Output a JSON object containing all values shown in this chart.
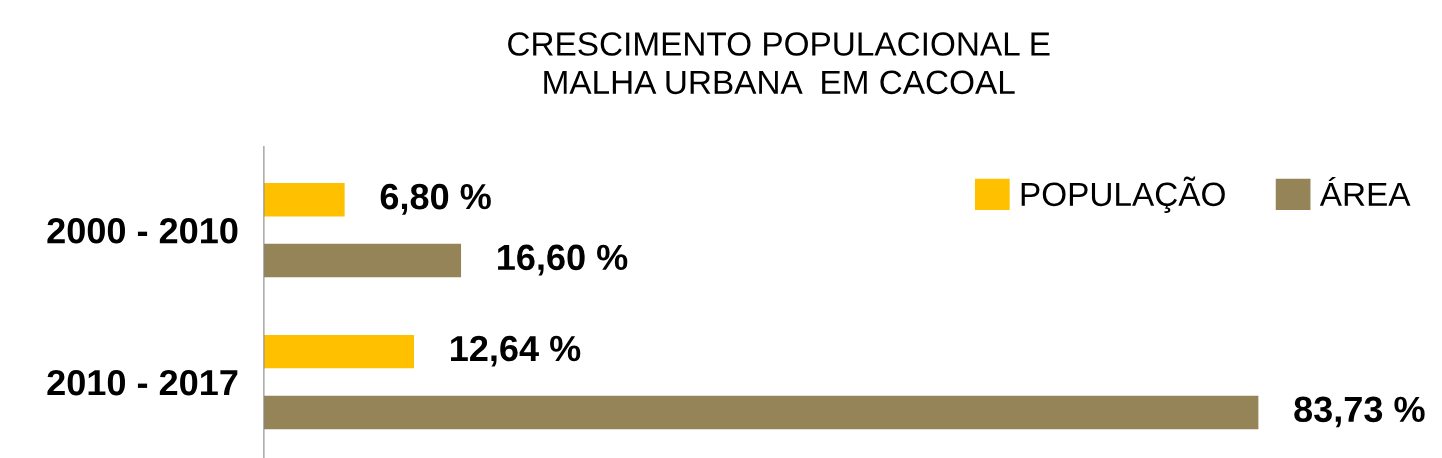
{
  "chart_data": {
    "type": "bar",
    "orientation": "horizontal",
    "title": "CRESCIMENTO POPULACIONAL E\nMALHA URBANA  EM CACOAL",
    "categories": [
      "2000 - 2010",
      "2010 - 2017"
    ],
    "series": [
      {
        "name": "POPULAÇÃO",
        "color": "#ffc000",
        "values": [
          6.8,
          12.64
        ],
        "value_labels": [
          "6,80 %",
          "12,64 %"
        ]
      },
      {
        "name": "ÁREA",
        "color": "#948457",
        "values": [
          16.6,
          83.73
        ],
        "value_labels": [
          "16,60 %",
          "83,73 %"
        ]
      }
    ],
    "legend": "top right",
    "grid": false
  }
}
